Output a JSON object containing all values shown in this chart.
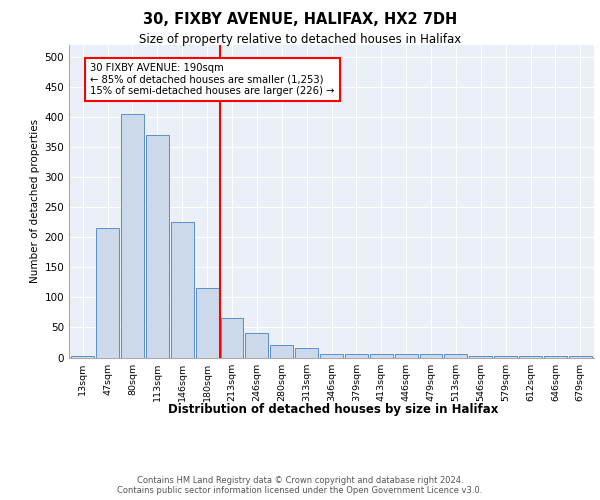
{
  "title": "30, FIXBY AVENUE, HALIFAX, HX2 7DH",
  "subtitle": "Size of property relative to detached houses in Halifax",
  "xlabel": "Distribution of detached houses by size in Halifax",
  "ylabel": "Number of detached properties",
  "bar_color": "#ccd9ea",
  "bar_edge_color": "#5b8fc9",
  "vline_color": "red",
  "annotation_text": "30 FIXBY AVENUE: 190sqm\n← 85% of detached houses are smaller (1,253)\n15% of semi-detached houses are larger (226) →",
  "categories": [
    "13sqm",
    "47sqm",
    "80sqm",
    "113sqm",
    "146sqm",
    "180sqm",
    "213sqm",
    "246sqm",
    "280sqm",
    "313sqm",
    "346sqm",
    "379sqm",
    "413sqm",
    "446sqm",
    "479sqm",
    "513sqm",
    "546sqm",
    "579sqm",
    "612sqm",
    "646sqm",
    "679sqm"
  ],
  "values": [
    2,
    215,
    405,
    370,
    225,
    115,
    65,
    40,
    20,
    15,
    5,
    5,
    5,
    5,
    5,
    5,
    2,
    2,
    2,
    2,
    3
  ],
  "ylim": [
    0,
    520
  ],
  "yticks": [
    0,
    50,
    100,
    150,
    200,
    250,
    300,
    350,
    400,
    450,
    500
  ],
  "footer": "Contains HM Land Registry data © Crown copyright and database right 2024.\nContains public sector information licensed under the Open Government Licence v3.0.",
  "bg_color": "#eaeff8"
}
